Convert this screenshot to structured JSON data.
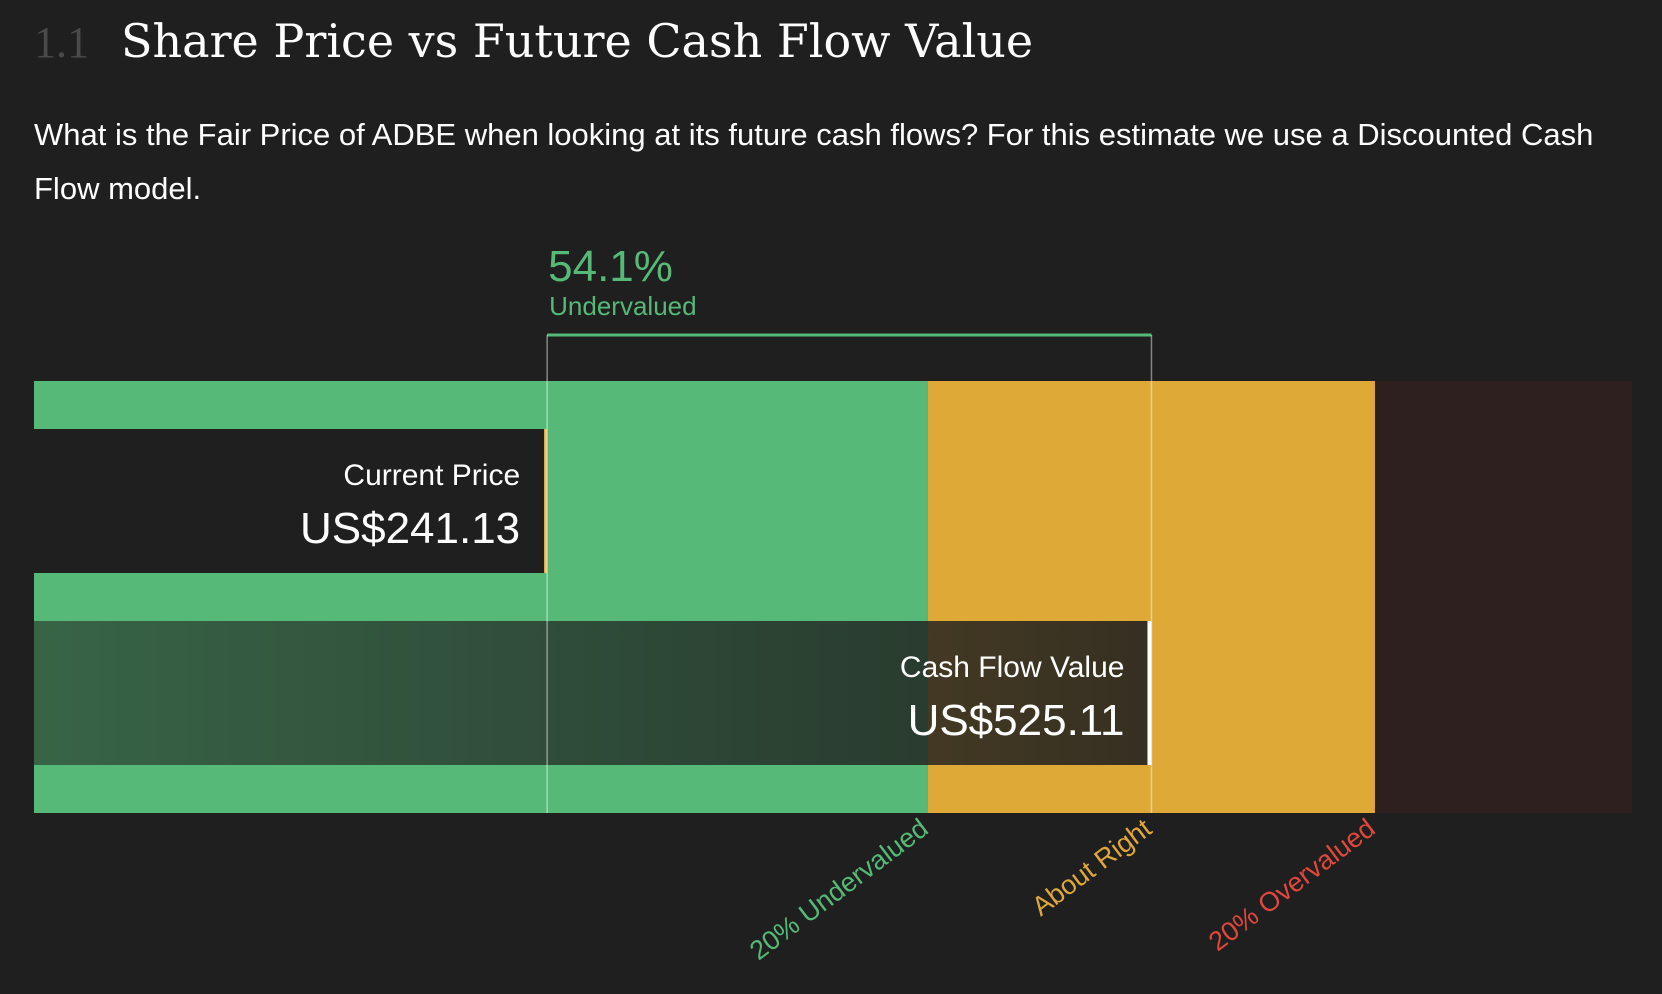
{
  "header": {
    "section_number": "1.1",
    "title": "Share Price vs Future Cash Flow Value"
  },
  "description": "What is the Fair Price of ADBE when looking at its future cash flows? For this estimate we use a Discounted Cash Flow model.",
  "chart_data": {
    "type": "bar",
    "ticker": "ADBE",
    "discount": {
      "value": "54.1%",
      "label": "Undervalued"
    },
    "current_price": {
      "label": "Current Price",
      "display": "US$241.13",
      "value": 241.13
    },
    "cash_flow_value": {
      "label": "Cash Flow Value",
      "display": "US$525.11",
      "value": 525.11
    },
    "zones": [
      {
        "name": "undervalued",
        "from": 0,
        "to": 0.8,
        "color": "#56b977"
      },
      {
        "name": "about-right",
        "from": 0.8,
        "to": 1.2,
        "color": "#dfa937"
      },
      {
        "name": "overvalued",
        "from": 1.2,
        "to": 1.43,
        "color": "#2e201f"
      }
    ],
    "zone_labels": [
      {
        "text": "20% Undervalued",
        "at": 0.8,
        "color": "#56b977"
      },
      {
        "text": "About Right",
        "at": 1.0,
        "color": "#dfa937"
      },
      {
        "text": "20% Overvalued",
        "at": 1.2,
        "color": "#e0473d"
      }
    ],
    "colors": {
      "accent_green": "#56b977",
      "accent_amber": "#dfa937",
      "accent_red": "#e0473d",
      "current_price_marker": "#f3c15a",
      "background": "#1f1f1f"
    }
  }
}
